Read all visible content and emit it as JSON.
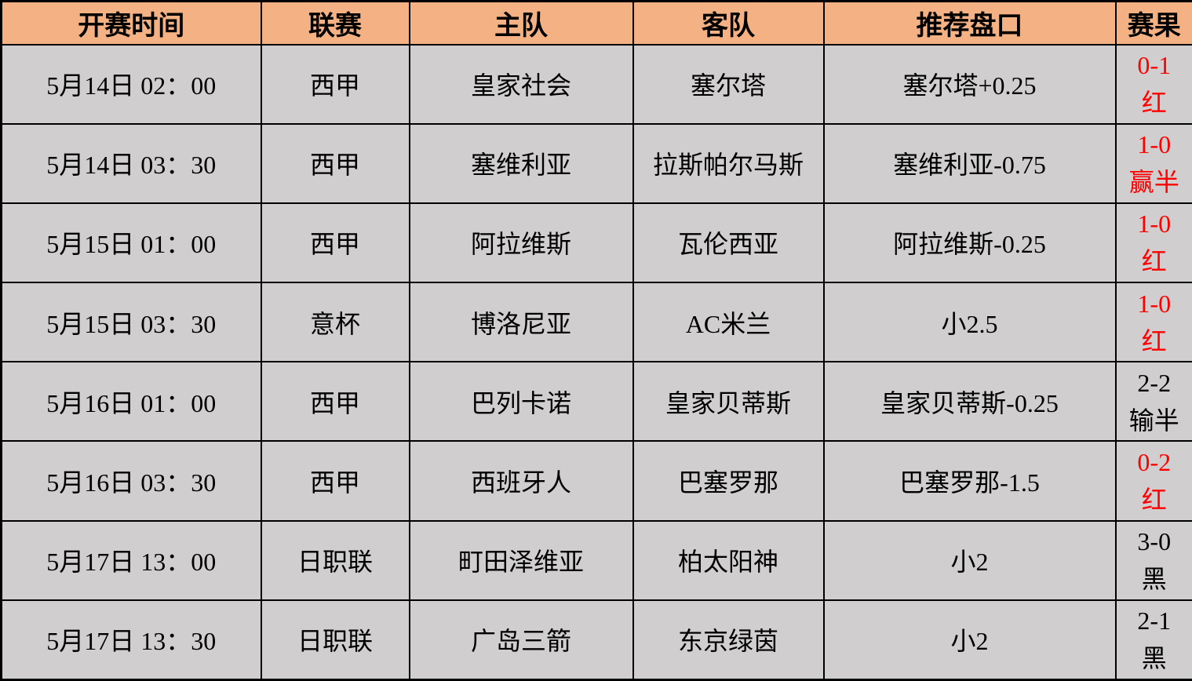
{
  "colors": {
    "header_bg": "#F4B183",
    "body_bg": "#D0CECE",
    "border": "#000000",
    "result_win": "#FF0000",
    "result_loss": "#000000"
  },
  "table": {
    "headers": [
      "开赛时间",
      "联赛",
      "主队",
      "客队",
      "推荐盘口",
      "赛果"
    ],
    "rows": [
      {
        "time": "5月14日 02：00",
        "league": "西甲",
        "home": "皇家社会",
        "away": "塞尔塔",
        "handicap": "塞尔塔+0.25",
        "result_score": "0-1",
        "result_outcome": "红",
        "result_color": "#FF0000"
      },
      {
        "time": "5月14日 03：30",
        "league": "西甲",
        "home": "塞维利亚",
        "away": "拉斯帕尔马斯",
        "handicap": "塞维利亚-0.75",
        "result_score": "1-0",
        "result_outcome": "赢半",
        "result_color": "#FF0000"
      },
      {
        "time": "5月15日 01：00",
        "league": "西甲",
        "home": "阿拉维斯",
        "away": "瓦伦西亚",
        "handicap": "阿拉维斯-0.25",
        "result_score": "1-0",
        "result_outcome": "红",
        "result_color": "#FF0000"
      },
      {
        "time": "5月15日 03：30",
        "league": "意杯",
        "home": "博洛尼亚",
        "away": "AC米兰",
        "handicap": "小2.5",
        "result_score": "1-0",
        "result_outcome": "红",
        "result_color": "#FF0000"
      },
      {
        "time": "5月16日 01：00",
        "league": "西甲",
        "home": "巴列卡诺",
        "away": "皇家贝蒂斯",
        "handicap": "皇家贝蒂斯-0.25",
        "result_score": "2-2",
        "result_outcome": "输半",
        "result_color": "#000000"
      },
      {
        "time": "5月16日 03：30",
        "league": "西甲",
        "home": "西班牙人",
        "away": "巴塞罗那",
        "handicap": "巴塞罗那-1.5",
        "result_score": "0-2",
        "result_outcome": "红",
        "result_color": "#FF0000"
      },
      {
        "time": "5月17日 13：00",
        "league": "日职联",
        "home": "町田泽维亚",
        "away": "柏太阳神",
        "handicap": "小2",
        "result_score": "3-0",
        "result_outcome": "黑",
        "result_color": "#000000"
      },
      {
        "time": "5月17日 13：30",
        "league": "日职联",
        "home": "广岛三箭",
        "away": "东京绿茵",
        "handicap": "小2",
        "result_score": "2-1",
        "result_outcome": "黑",
        "result_color": "#000000"
      }
    ]
  }
}
